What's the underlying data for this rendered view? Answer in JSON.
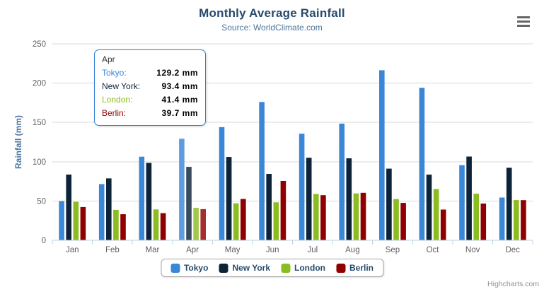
{
  "chart_data": {
    "type": "bar",
    "title": "Monthly Average Rainfall",
    "subtitle": "Source: WorldClimate.com",
    "categories": [
      "Jan",
      "Feb",
      "Mar",
      "Apr",
      "May",
      "Jun",
      "Jul",
      "Aug",
      "Sep",
      "Oct",
      "Nov",
      "Dec"
    ],
    "series": [
      {
        "name": "Tokyo",
        "color": "#3a87d8",
        "values": [
          49.9,
          71.5,
          106.4,
          129.2,
          144.0,
          176.0,
          135.6,
          148.5,
          216.4,
          194.1,
          95.6,
          54.4
        ]
      },
      {
        "name": "New York",
        "color": "#0d233a",
        "values": [
          83.6,
          78.8,
          98.5,
          93.4,
          106.0,
          84.5,
          105.0,
          104.3,
          91.2,
          83.5,
          106.6,
          92.3
        ]
      },
      {
        "name": "London",
        "color": "#8bbc21",
        "values": [
          48.9,
          38.8,
          39.3,
          41.4,
          47.0,
          48.3,
          59.0,
          59.6,
          52.4,
          65.2,
          59.3,
          51.2
        ]
      },
      {
        "name": "Berlin",
        "color": "#910000",
        "values": [
          42.4,
          33.2,
          34.5,
          39.7,
          52.6,
          75.5,
          57.4,
          60.4,
          47.6,
          39.1,
          46.8,
          51.1
        ]
      }
    ],
    "xlabel": "",
    "ylabel": "Rainfall (mm)",
    "ylim": [
      0,
      250
    ],
    "ytick_step": 50,
    "ytick_labels": [
      "0",
      "50",
      "100",
      "150",
      "200",
      "250"
    ],
    "value_suffix": " mm",
    "grid": true,
    "legend_position": "bottom"
  },
  "tooltip": {
    "category": "Apr",
    "rows": [
      {
        "name": "Tokyo",
        "label": "Tokyo:",
        "value": "129.2 mm"
      },
      {
        "name": "New York",
        "label": "New York:",
        "value": "93.4 mm"
      },
      {
        "name": "London",
        "label": "London:",
        "value": "41.4 mm"
      },
      {
        "name": "Berlin",
        "label": "Berlin:",
        "value": "39.7 mm"
      }
    ]
  },
  "credits": "Highcharts.com",
  "icons": {
    "export_menu": "hamburger-menu-icon"
  },
  "colors": {
    "title": "#274b6d",
    "subtitle": "#4d759e",
    "axis_title": "#4d759e",
    "axis_labels": "#606060",
    "gridline": "#d8d8d8",
    "axis_line": "#c0d0e0",
    "tooltip_border": "#2f7ed8",
    "legend_text": "#274b6d",
    "credits_text": "#909090",
    "menu_icon": "#666666"
  }
}
